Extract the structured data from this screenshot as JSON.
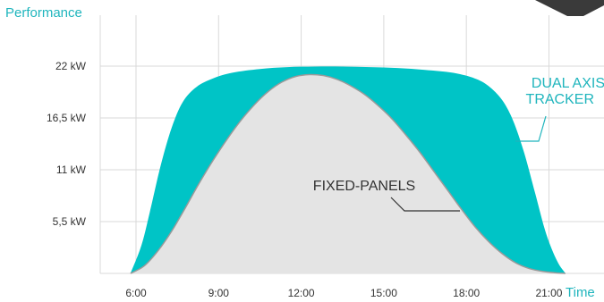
{
  "chart_data": {
    "type": "area",
    "xlabel": "Time",
    "ylabel": "Performance",
    "x_ticks": [
      "6:00",
      "9:00",
      "12:00",
      "15:00",
      "18:00",
      "21:00"
    ],
    "y_ticks": [
      "5,5 kW",
      "11 kW",
      "16,5 kW",
      "22 kW"
    ],
    "y_tick_values": [
      5.5,
      11,
      16.5,
      22
    ],
    "xlim": [
      5.2,
      23.5
    ],
    "ylim": [
      0,
      22
    ],
    "grid": true,
    "colors": {
      "dual_axis": "#00c4c6",
      "fixed": "#e4e4e4",
      "fixed_outline": "#9a9a9a",
      "grid": "#d9d9d9",
      "accent_text": "#1fb5bd",
      "fixed_label": "#333333"
    },
    "series": [
      {
        "name": "DUAL AXIS TRACKER",
        "x": [
          6.3,
          6.7,
          7.0,
          7.4,
          7.8,
          8.2,
          8.7,
          9.3,
          10,
          11,
          12,
          13,
          14,
          15,
          16,
          17,
          18,
          18.8,
          19.3,
          19.8,
          20.2,
          20.6,
          21.0,
          21.4,
          21.8,
          22.1
        ],
        "y": [
          0,
          3.0,
          6.5,
          11.5,
          15.5,
          18.2,
          19.8,
          20.7,
          21.3,
          21.7,
          21.9,
          21.95,
          21.95,
          21.9,
          21.8,
          21.6,
          21.3,
          20.7,
          19.9,
          18.4,
          16.2,
          12.8,
          8.5,
          4.2,
          1.3,
          0
        ]
      },
      {
        "name": "FIXED-PANELS",
        "x": [
          6.3,
          6.8,
          7.3,
          7.8,
          8.3,
          8.8,
          9.3,
          9.8,
          10.3,
          10.8,
          11.3,
          11.8,
          12.3,
          12.8,
          13.3,
          13.8,
          14.3,
          14.8,
          15.3,
          15.8,
          16.3,
          16.8,
          17.3,
          17.8,
          18.3,
          18.8,
          19.3,
          19.8,
          20.3,
          20.8,
          21.3,
          21.8,
          22.1
        ],
        "y": [
          0,
          0.8,
          2.4,
          4.5,
          7.0,
          9.6,
          12.0,
          14.2,
          16.2,
          17.9,
          19.3,
          20.3,
          20.9,
          21.1,
          21.0,
          20.6,
          19.9,
          19.0,
          17.8,
          16.4,
          14.7,
          12.9,
          10.9,
          8.9,
          6.9,
          5.0,
          3.4,
          2.1,
          1.1,
          0.5,
          0.2,
          0.05,
          0
        ]
      }
    ],
    "annotations": [
      {
        "line1": "DUAL AXIS",
        "line2": "TRACKER",
        "series": "DUAL AXIS TRACKER"
      },
      {
        "line1": "FIXED-PANELS",
        "series": "FIXED-PANELS"
      }
    ]
  }
}
